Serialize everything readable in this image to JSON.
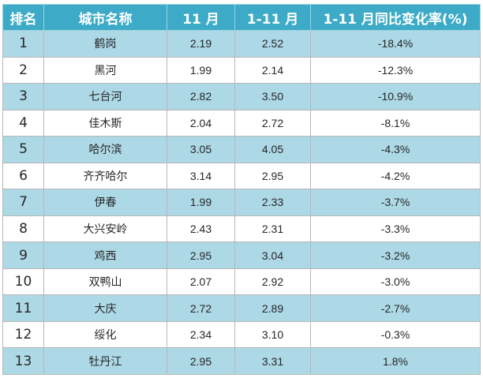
{
  "table": {
    "headers": [
      "排名",
      "城市名称",
      "11 月",
      "1-11 月",
      "1-11 月同比变化率(%)"
    ],
    "rows": [
      [
        "1",
        "鹤岗",
        "2.19",
        "2.52",
        "-18.4%"
      ],
      [
        "2",
        "黑河",
        "1.99",
        "2.14",
        "-12.3%"
      ],
      [
        "3",
        "七台河",
        "2.82",
        "3.50",
        "-10.9%"
      ],
      [
        "4",
        "佳木斯",
        "2.04",
        "2.72",
        "-8.1%"
      ],
      [
        "5",
        "哈尔滨",
        "3.05",
        "4.05",
        "-4.3%"
      ],
      [
        "6",
        "齐齐哈尔",
        "3.14",
        "2.95",
        "-4.2%"
      ],
      [
        "7",
        "伊春",
        "1.99",
        "2.33",
        "-3.7%"
      ],
      [
        "8",
        "大兴安岭",
        "2.43",
        "2.31",
        "-3.3%"
      ],
      [
        "9",
        "鸡西",
        "2.95",
        "3.04",
        "-3.2%"
      ],
      [
        "10",
        "双鸭山",
        "2.07",
        "2.92",
        "-3.0%"
      ],
      [
        "11",
        "大庆",
        "2.72",
        "2.89",
        "-2.7%"
      ],
      [
        "12",
        "绥化",
        "2.34",
        "3.10",
        "-0.3%"
      ],
      [
        "13",
        "牡丹江",
        "2.95",
        "3.31",
        "1.8%"
      ]
    ]
  },
  "colors": {
    "header_bg": "#3dabc7",
    "header_text": "#ffffff",
    "stripe_row": "#add8e6",
    "plain_row": "#ffffff",
    "border": "#b7b7b7"
  }
}
